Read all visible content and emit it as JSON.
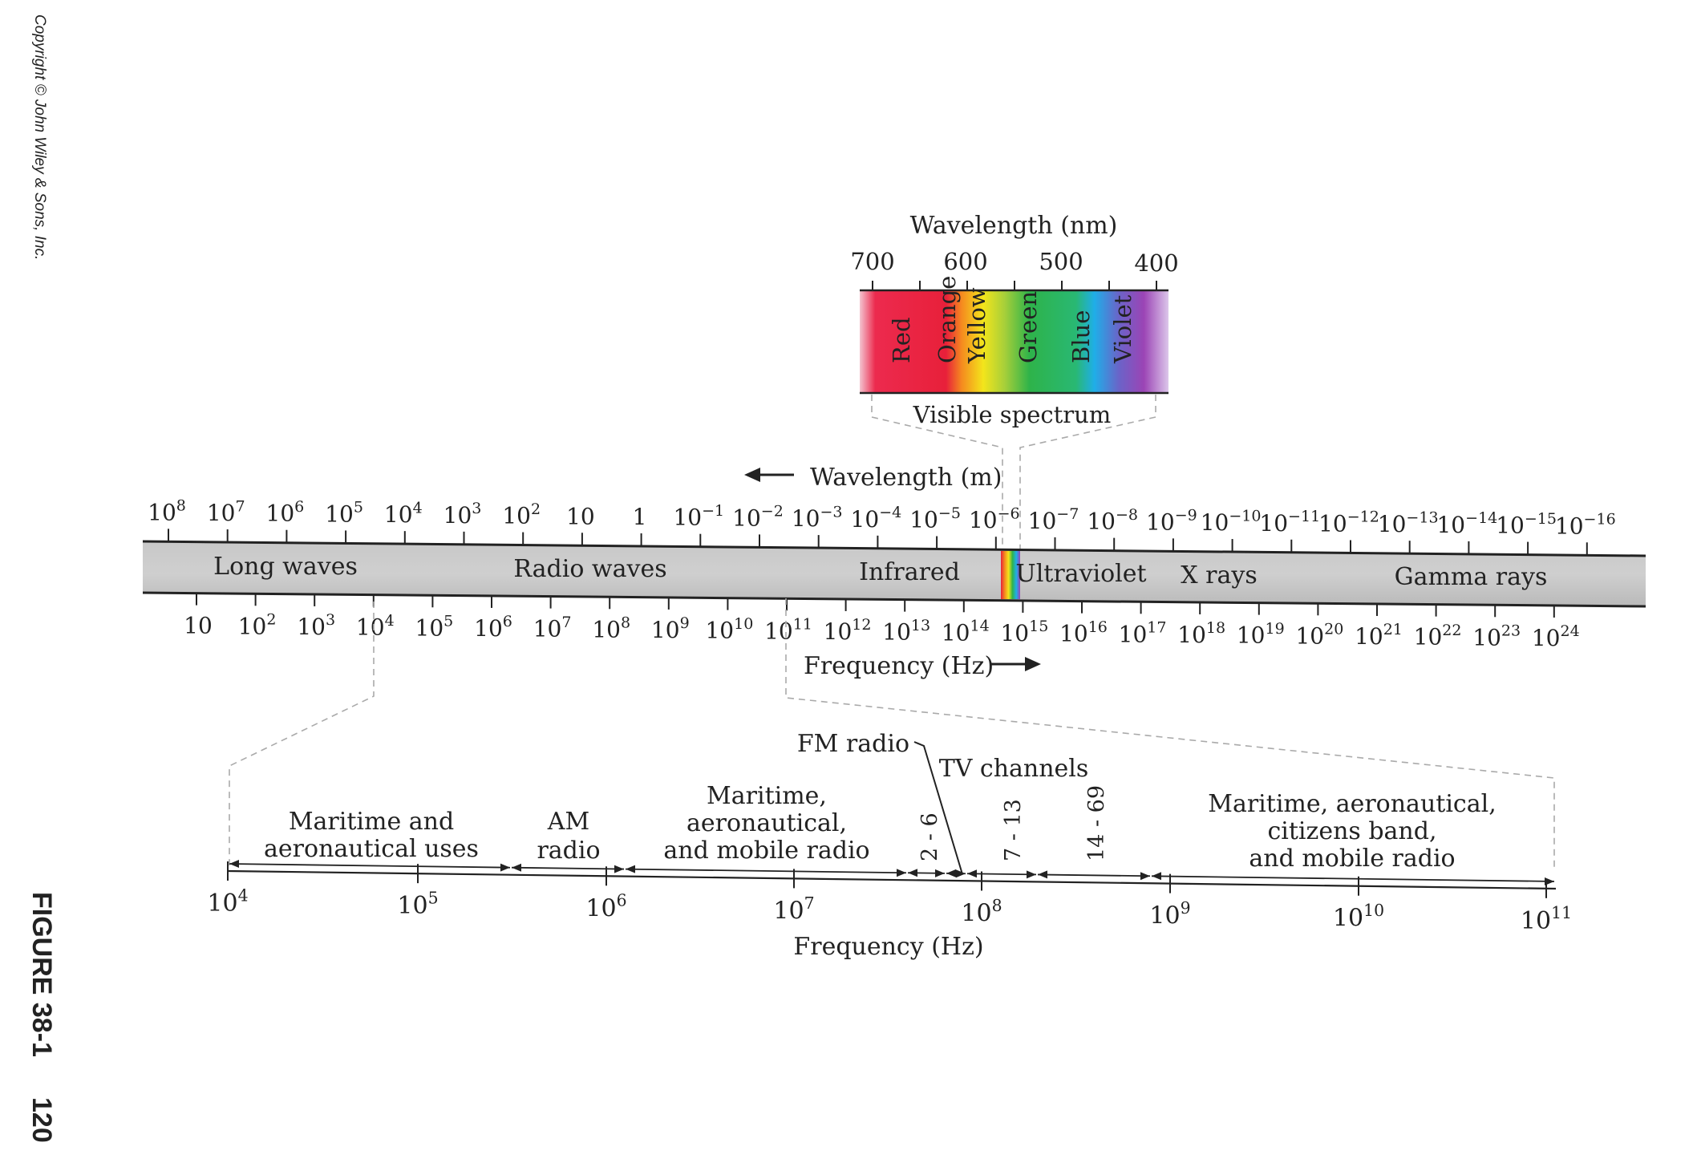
{
  "sidebar": {
    "copyright": "Copyright © John Wiley & Sons, Inc.",
    "figure_label": "FIGURE 38-1",
    "page_number": "120"
  },
  "visible": {
    "axis_title": "Wavelength (nm)",
    "ticks": [
      "700",
      "600",
      "500",
      "400"
    ],
    "colors": [
      {
        "name": "Red",
        "hex": "#e8203a"
      },
      {
        "name": "Orange",
        "hex": "#f58a1f"
      },
      {
        "name": "Yellow",
        "hex": "#f3e51b"
      },
      {
        "name": "Green",
        "hex": "#2eb34a"
      },
      {
        "name": "Blue",
        "hex": "#1faee8"
      },
      {
        "name": "Violet",
        "hex": "#9b44b5"
      }
    ],
    "caption": "Visible spectrum"
  },
  "main": {
    "wavelength_title": "Wavelength (m)",
    "frequency_title": "Frequency (Hz)",
    "wavelength_ticks": [
      {
        "b": "10",
        "e": "8"
      },
      {
        "b": "10",
        "e": "7"
      },
      {
        "b": "10",
        "e": "6"
      },
      {
        "b": "10",
        "e": "5"
      },
      {
        "b": "10",
        "e": "4"
      },
      {
        "b": "10",
        "e": "3"
      },
      {
        "b": "10",
        "e": "2"
      },
      {
        "b": "10",
        "e": ""
      },
      {
        "b": "1",
        "e": ""
      },
      {
        "b": "10",
        "e": "−1"
      },
      {
        "b": "10",
        "e": "−2"
      },
      {
        "b": "10",
        "e": "−3"
      },
      {
        "b": "10",
        "e": "−4"
      },
      {
        "b": "10",
        "e": "−5"
      },
      {
        "b": "10",
        "e": "−6"
      },
      {
        "b": "10",
        "e": "−7"
      },
      {
        "b": "10",
        "e": "−8"
      },
      {
        "b": "10",
        "e": "−9"
      },
      {
        "b": "10",
        "e": "−10"
      },
      {
        "b": "10",
        "e": "−11"
      },
      {
        "b": "10",
        "e": "−12"
      },
      {
        "b": "10",
        "e": "−13"
      },
      {
        "b": "10",
        "e": "−14"
      },
      {
        "b": "10",
        "e": "−15"
      },
      {
        "b": "10",
        "e": "−16"
      }
    ],
    "frequency_ticks": [
      {
        "b": "10",
        "e": ""
      },
      {
        "b": "10",
        "e": "2"
      },
      {
        "b": "10",
        "e": "3"
      },
      {
        "b": "10",
        "e": "4"
      },
      {
        "b": "10",
        "e": "5"
      },
      {
        "b": "10",
        "e": "6"
      },
      {
        "b": "10",
        "e": "7"
      },
      {
        "b": "10",
        "e": "8"
      },
      {
        "b": "10",
        "e": "9"
      },
      {
        "b": "10",
        "e": "10"
      },
      {
        "b": "10",
        "e": "11"
      },
      {
        "b": "10",
        "e": "12"
      },
      {
        "b": "10",
        "e": "13"
      },
      {
        "b": "10",
        "e": "14"
      },
      {
        "b": "10",
        "e": "15"
      },
      {
        "b": "10",
        "e": "16"
      },
      {
        "b": "10",
        "e": "17"
      },
      {
        "b": "10",
        "e": "18"
      },
      {
        "b": "10",
        "e": "19"
      },
      {
        "b": "10",
        "e": "20"
      },
      {
        "b": "10",
        "e": "21"
      },
      {
        "b": "10",
        "e": "22"
      },
      {
        "b": "10",
        "e": "23"
      },
      {
        "b": "10",
        "e": "24"
      }
    ],
    "bands": [
      "Long waves",
      "Radio waves",
      "Infrared",
      "Ultraviolet",
      "X rays",
      "Gamma rays"
    ]
  },
  "radio": {
    "frequency_title": "Frequency (Hz)",
    "ticks": [
      {
        "b": "10",
        "e": "4"
      },
      {
        "b": "10",
        "e": "5"
      },
      {
        "b": "10",
        "e": "6"
      },
      {
        "b": "10",
        "e": "7"
      },
      {
        "b": "10",
        "e": "8"
      },
      {
        "b": "10",
        "e": "9"
      },
      {
        "b": "10",
        "e": "10"
      },
      {
        "b": "10",
        "e": "11"
      }
    ],
    "labels": {
      "maritime_uses": [
        "Maritime and",
        "aeronautical uses"
      ],
      "am_radio": [
        "AM",
        "radio"
      ],
      "maritime_mobile": [
        "Maritime,",
        "aeronautical,",
        "and mobile radio"
      ],
      "fm_radio": "FM radio",
      "tv_channels": "TV channels",
      "ch_2_6": "2 - 6",
      "ch_7_13": "7 - 13",
      "ch_14_69": "14 - 69",
      "maritime_cb": [
        "Maritime, aeronautical,",
        "citizens band,",
        "and mobile radio"
      ]
    }
  }
}
